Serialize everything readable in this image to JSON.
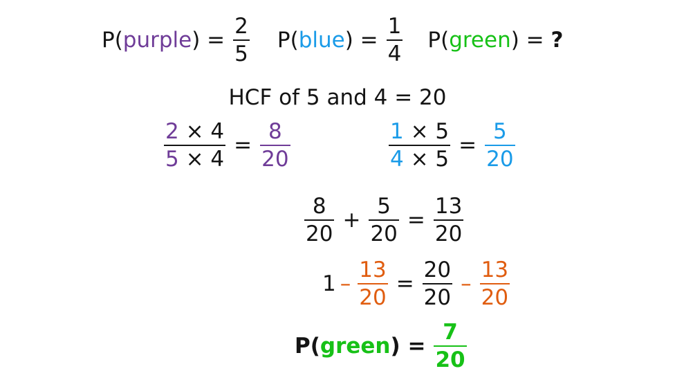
{
  "colors": {
    "purple": "#6f3c98",
    "blue": "#1a9be8",
    "green": "#17c117",
    "orange": "#e05d10"
  },
  "row1": {
    "p_open": "P(",
    "purple": "purple",
    "close_eq": ") =",
    "purple_num": "2",
    "purple_den": "5",
    "p_open2": "P(",
    "blue": "blue",
    "close_eq2": ") =",
    "blue_num": "1",
    "blue_den": "4",
    "p_open3": "P(",
    "green": "green",
    "close_eq3": ") =",
    "question": "?"
  },
  "hcf": "HCF of 5 and 4 = 20",
  "row3": {
    "p_num_a": "2",
    "p_num_b": " × 4",
    "p_den_a": "5",
    "p_den_b": " × 4",
    "eq": "=",
    "p_res_num": "8",
    "p_res_den": "20",
    "b_num_a": "1",
    "b_num_b": " × 5",
    "b_den_a": "4",
    "b_den_b": " × 5",
    "eq2": "=",
    "b_res_num": "5",
    "b_res_den": "20"
  },
  "row4": {
    "a_num": "8",
    "a_den": "20",
    "plus": "+",
    "b_num": "5",
    "b_den": "20",
    "eq": "=",
    "c_num": "13",
    "c_den": "20"
  },
  "row5": {
    "one": "1",
    "minus": "–",
    "a_num": "13",
    "a_den": "20",
    "eq": "=",
    "b_num": "20",
    "b_den": "20",
    "minus2": "–",
    "c_num": "13",
    "c_den": "20"
  },
  "row6": {
    "p_open": "P(",
    "green": "green",
    "close_eq": ") =",
    "num": "7",
    "den": "20"
  }
}
